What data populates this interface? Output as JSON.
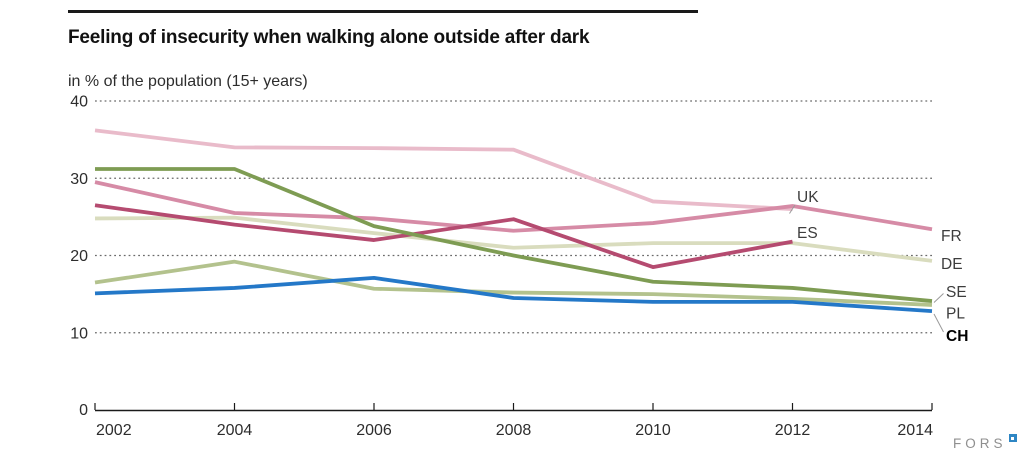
{
  "chart_data": {
    "type": "line",
    "title": "Feeling of insecurity when walking alone outside after dark",
    "subtitle": "in % of the population (15+ years)",
    "x": [
      2002,
      2004,
      2006,
      2008,
      2010,
      2012,
      2014
    ],
    "xlabel": "",
    "ylabel": "% of the population",
    "ylim": [
      0,
      40
    ],
    "yticks": [
      0,
      10,
      20,
      30,
      40
    ],
    "grid": "horizontal dotted gridlines",
    "legend_position": "inline labels at right end of lines",
    "series": [
      {
        "name": "UK",
        "color": "#e9bbca",
        "values": [
          36.2,
          34.0,
          33.9,
          33.7,
          27.0,
          26.0,
          null
        ]
      },
      {
        "name": "FR",
        "color": "#d68ba6",
        "values": [
          29.5,
          25.5,
          24.8,
          23.2,
          24.2,
          26.4,
          23.4
        ]
      },
      {
        "name": "ES",
        "color": "#b54b70",
        "values": [
          26.5,
          24.0,
          22.0,
          24.7,
          18.5,
          21.8,
          null
        ]
      },
      {
        "name": "DE",
        "color": "#d9dcbe",
        "values": [
          24.8,
          24.9,
          22.9,
          21.0,
          21.6,
          21.6,
          19.3
        ]
      },
      {
        "name": "SE",
        "color": "#7e9c53",
        "values": [
          31.2,
          31.2,
          23.8,
          20.0,
          16.6,
          15.8,
          14.1
        ]
      },
      {
        "name": "PL",
        "color": "#b3c28d",
        "values": [
          16.5,
          19.2,
          15.7,
          15.2,
          15.0,
          14.4,
          13.6
        ]
      },
      {
        "name": "CH",
        "color": "#2478c8",
        "values": [
          15.1,
          15.8,
          17.1,
          14.5,
          14.0,
          14.0,
          12.8
        ]
      }
    ],
    "draw_order": [
      "DE",
      "PL",
      "UK",
      "FR",
      "ES",
      "SE",
      "CH"
    ],
    "bold_labels": [
      "CH"
    ]
  },
  "footer": {
    "logo_text": "FORS"
  },
  "colors": {
    "grid": "#6a6a6a",
    "axis": "#1a1a1a",
    "tick_text": "#2d2d2d",
    "series_label_text": "#3d3d3d",
    "bold_label_text": "#000000",
    "connector": "#9a9a9a",
    "logo_text": "#8f8f8f",
    "logo_square": "#2e86c4"
  }
}
